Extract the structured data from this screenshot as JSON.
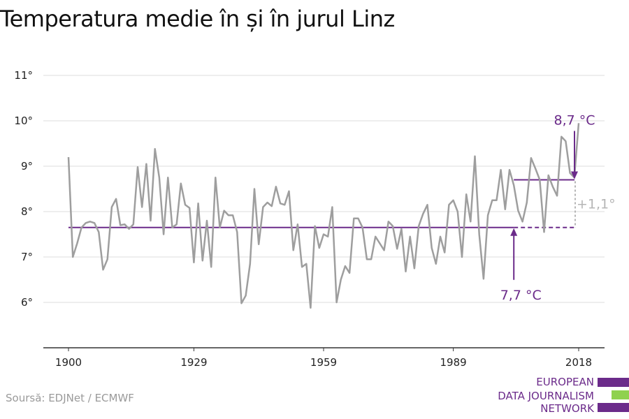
{
  "title": "Temperatura medie în și în jurul Linz",
  "source": "Soursă: EDJNet / ECMWF",
  "logo": {
    "lines": [
      "EUROPEAN",
      "DATA JOURNALISM",
      "NETWORK"
    ],
    "colors": [
      "#6b2b8a",
      "#8fd14f",
      "#6b2b8a"
    ]
  },
  "colors": {
    "series": "#9e9e9e",
    "mean": "#6b2b8a",
    "diff": "#b5b5b5",
    "grid": "#dddddd",
    "axis": "#333333"
  },
  "chart_data": {
    "type": "line",
    "title": "Temperatura medie în și în jurul Linz",
    "xlabel": "",
    "ylabel": "",
    "xlim": [
      1900,
      2018
    ],
    "ylim": [
      5,
      11
    ],
    "x_ticks": [
      1900,
      1929,
      1959,
      1989,
      2018
    ],
    "x_tick_labels": [
      "1900",
      "1929",
      "1959",
      "1989",
      "2018"
    ],
    "y_ticks": [
      6,
      7,
      8,
      9,
      10,
      11
    ],
    "y_tick_labels": [
      "6°",
      "7°",
      "8°",
      "9°",
      "10°",
      "11°"
    ],
    "grid": true,
    "series": [
      {
        "x": [
          1900,
          1901,
          1902,
          1903,
          1904,
          1905,
          1906,
          1907,
          1908,
          1909,
          1910,
          1911,
          1912,
          1913,
          1914,
          1915,
          1916,
          1917,
          1918,
          1919,
          1920,
          1921,
          1922,
          1923,
          1924,
          1925,
          1926,
          1927,
          1928,
          1929,
          1930,
          1931,
          1932,
          1933,
          1934,
          1935,
          1936,
          1937,
          1938,
          1939,
          1940,
          1941,
          1942,
          1943,
          1944,
          1945,
          1946,
          1947,
          1948,
          1949,
          1950,
          1951,
          1952,
          1953,
          1954,
          1955,
          1956,
          1957,
          1958,
          1959,
          1960,
          1961,
          1962,
          1963,
          1964,
          1965,
          1966,
          1967,
          1968,
          1969,
          1970,
          1971,
          1972,
          1973,
          1974,
          1975,
          1976,
          1977,
          1978,
          1979,
          1980,
          1981,
          1982,
          1983,
          1984,
          1985,
          1986,
          1987,
          1988,
          1989,
          1990,
          1991,
          1992,
          1993,
          1994,
          1995,
          1996,
          1997,
          1998,
          1999,
          2000,
          2001,
          2002,
          2003,
          2004,
          2005,
          2006,
          2007,
          2008,
          2009,
          2010,
          2011,
          2012,
          2013,
          2014,
          2015,
          2016,
          2017,
          2018
        ],
        "values": [
          9.2,
          7.0,
          7.3,
          7.65,
          7.75,
          7.78,
          7.75,
          7.55,
          6.72,
          6.95,
          8.1,
          8.28,
          7.7,
          7.72,
          7.62,
          7.72,
          8.98,
          8.1,
          9.05,
          7.8,
          9.38,
          8.75,
          7.5,
          8.75,
          7.65,
          7.72,
          8.62,
          8.15,
          8.08,
          6.88,
          8.18,
          6.92,
          7.8,
          6.78,
          8.75,
          7.65,
          8.02,
          7.92,
          7.92,
          7.55,
          5.98,
          6.15,
          6.85,
          8.5,
          7.28,
          8.1,
          8.2,
          8.12,
          8.55,
          8.18,
          8.15,
          8.45,
          7.15,
          7.72,
          6.78,
          6.85,
          5.88,
          7.68,
          7.2,
          7.5,
          7.45,
          8.1,
          6.0,
          6.5,
          6.8,
          6.65,
          7.85,
          7.85,
          7.65,
          6.95,
          6.95,
          7.45,
          7.3,
          7.15,
          7.78,
          7.68,
          7.18,
          7.62,
          6.68,
          7.45,
          6.75,
          7.68,
          7.95,
          8.15,
          7.2,
          6.85,
          7.45,
          7.1,
          8.15,
          8.25,
          8.0,
          7.0,
          8.38,
          7.78,
          9.22,
          7.5,
          6.52,
          7.92,
          8.25,
          8.25,
          8.92,
          8.05,
          8.92,
          8.58,
          8.02,
          7.78,
          8.2,
          9.18,
          8.95,
          8.7,
          7.55,
          8.8,
          8.55,
          8.35,
          9.65,
          9.55,
          8.85,
          8.75,
          9.95
        ]
      }
    ],
    "reference_lines": [
      {
        "label": "7,7 °C",
        "value": 7.65,
        "x_from": 1900,
        "x_to": 2018,
        "solid_to": 2003
      },
      {
        "label": "8,7 °C",
        "value": 8.7,
        "x_from": 2003,
        "x_to": 2018
      }
    ],
    "annotations": [
      {
        "text": "7,7 °C",
        "x": 2003,
        "y": 7.65,
        "kind": "arrow-up"
      },
      {
        "text": "8,7 °C",
        "x": 2018,
        "y": 8.7,
        "kind": "arrow-down"
      },
      {
        "text": "+1,1°",
        "x": 2018,
        "from": 7.65,
        "to": 8.7,
        "kind": "difference"
      }
    ]
  }
}
